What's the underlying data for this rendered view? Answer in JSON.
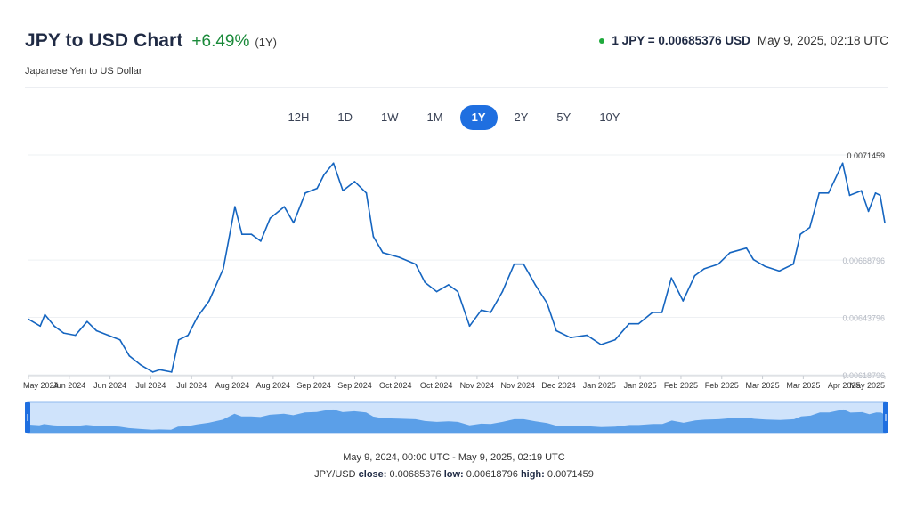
{
  "header": {
    "title": "JPY to USD Chart",
    "change": "+6.49%",
    "period": "(1Y)",
    "subtitle": "Japanese Yen to US Dollar",
    "rate": "1 JPY = 0.00685376 USD",
    "timestamp": "May 9, 2025, 02:18 UTC"
  },
  "tabs": [
    {
      "label": "12H",
      "active": false
    },
    {
      "label": "1D",
      "active": false
    },
    {
      "label": "1W",
      "active": false
    },
    {
      "label": "1M",
      "active": false
    },
    {
      "label": "1Y",
      "active": true
    },
    {
      "label": "2Y",
      "active": false
    },
    {
      "label": "5Y",
      "active": false
    },
    {
      "label": "10Y",
      "active": false
    }
  ],
  "colors": {
    "line": "#1565c0",
    "accent": "#1f6fe0",
    "positive": "#1a8a3a",
    "navigator_fill": "#5b9fe8",
    "navigator_bg": "#cfe3fb"
  },
  "chart_data": {
    "type": "line",
    "title": "JPY to USD Chart",
    "xlabel": "",
    "ylabel": "",
    "ylim": [
      0.00618796,
      0.0071459
    ],
    "y_ticks": [
      "0.0071459",
      "0.00668796",
      "0.00643796",
      "0.00618796"
    ],
    "x_ticks": [
      "May 2024",
      "Jun 2024",
      "Jun 2024",
      "Jul 2024",
      "Jul 2024",
      "Aug 2024",
      "Aug 2024",
      "Sep 2024",
      "Sep 2024",
      "Oct 2024",
      "Oct 2024",
      "Nov 2024",
      "Nov 2024",
      "Dec 2024",
      "Jan 2025",
      "Jan 2025",
      "Feb 2025",
      "Feb 2025",
      "Mar 2025",
      "Mar 2025",
      "Apr 2025",
      "May 2025"
    ],
    "grid": true,
    "series": [
      {
        "points": [
          [
            "2024-05-09",
            0.00643
          ],
          [
            "2024-05-14",
            0.0064
          ],
          [
            "2024-05-16",
            0.00645
          ],
          [
            "2024-05-20",
            0.0064
          ],
          [
            "2024-05-24",
            0.00637
          ],
          [
            "2024-05-29",
            0.00636
          ],
          [
            "2024-06-03",
            0.00642
          ],
          [
            "2024-06-07",
            0.00638
          ],
          [
            "2024-06-12",
            0.00636
          ],
          [
            "2024-06-17",
            0.00634
          ],
          [
            "2024-06-21",
            0.00627
          ],
          [
            "2024-06-26",
            0.00623
          ],
          [
            "2024-07-01",
            0.0062
          ],
          [
            "2024-07-04",
            0.00621
          ],
          [
            "2024-07-09",
            0.0062
          ],
          [
            "2024-07-12",
            0.00634
          ],
          [
            "2024-07-16",
            0.00636
          ],
          [
            "2024-07-20",
            0.00644
          ],
          [
            "2024-07-25",
            0.00651
          ],
          [
            "2024-07-31",
            0.00665
          ],
          [
            "2024-08-05",
            0.00692
          ],
          [
            "2024-08-08",
            0.0068
          ],
          [
            "2024-08-12",
            0.0068
          ],
          [
            "2024-08-16",
            0.00677
          ],
          [
            "2024-08-20",
            0.00687
          ],
          [
            "2024-08-26",
            0.00692
          ],
          [
            "2024-08-30",
            0.00685
          ],
          [
            "2024-09-04",
            0.00698
          ],
          [
            "2024-09-09",
            0.007
          ],
          [
            "2024-09-12",
            0.00706
          ],
          [
            "2024-09-16",
            0.00711
          ],
          [
            "2024-09-20",
            0.00699
          ],
          [
            "2024-09-25",
            0.00703
          ],
          [
            "2024-09-30",
            0.00698
          ],
          [
            "2024-10-03",
            0.00679
          ],
          [
            "2024-10-07",
            0.00672
          ],
          [
            "2024-10-14",
            0.0067
          ],
          [
            "2024-10-21",
            0.00667
          ],
          [
            "2024-10-25",
            0.00659
          ],
          [
            "2024-10-30",
            0.00655
          ],
          [
            "2024-11-04",
            0.00658
          ],
          [
            "2024-11-08",
            0.00655
          ],
          [
            "2024-11-13",
            0.0064
          ],
          [
            "2024-11-18",
            0.00647
          ],
          [
            "2024-11-22",
            0.00646
          ],
          [
            "2024-11-27",
            0.00655
          ],
          [
            "2024-12-02",
            0.00667
          ],
          [
            "2024-12-06",
            0.00667
          ],
          [
            "2024-12-11",
            0.00658
          ],
          [
            "2024-12-16",
            0.0065
          ],
          [
            "2024-12-20",
            0.00638
          ],
          [
            "2024-12-26",
            0.00635
          ],
          [
            "2025-01-02",
            0.00636
          ],
          [
            "2025-01-08",
            0.00632
          ],
          [
            "2025-01-14",
            0.00634
          ],
          [
            "2025-01-20",
            0.00641
          ],
          [
            "2025-01-24",
            0.00641
          ],
          [
            "2025-01-30",
            0.00646
          ],
          [
            "2025-02-03",
            0.00646
          ],
          [
            "2025-02-07",
            0.00661
          ],
          [
            "2025-02-12",
            0.00651
          ],
          [
            "2025-02-17",
            0.00662
          ],
          [
            "2025-02-21",
            0.00665
          ],
          [
            "2025-02-27",
            0.00667
          ],
          [
            "2025-03-04",
            0.00672
          ],
          [
            "2025-03-11",
            0.00674
          ],
          [
            "2025-03-14",
            0.00669
          ],
          [
            "2025-03-19",
            0.00666
          ],
          [
            "2025-03-25",
            0.00664
          ],
          [
            "2025-03-31",
            0.00667
          ],
          [
            "2025-04-03",
            0.0068
          ],
          [
            "2025-04-07",
            0.00683
          ],
          [
            "2025-04-11",
            0.00698
          ],
          [
            "2025-04-15",
            0.00698
          ],
          [
            "2025-04-21",
            0.00711
          ],
          [
            "2025-04-24",
            0.00697
          ],
          [
            "2025-04-29",
            0.00699
          ],
          [
            "2025-05-02",
            0.0069
          ],
          [
            "2025-05-05",
            0.00698
          ],
          [
            "2025-05-07",
            0.00697
          ],
          [
            "2025-05-09",
            0.00685
          ]
        ]
      }
    ]
  },
  "footer": {
    "range": "May 9, 2024, 00:00 UTC - May 9, 2025, 02:19 UTC",
    "pair": "JPY/USD",
    "close_label": "close:",
    "close_value": "0.00685376",
    "low_label": "low:",
    "low_value": "0.00618796",
    "high_label": "high:",
    "high_value": "0.0071459"
  }
}
